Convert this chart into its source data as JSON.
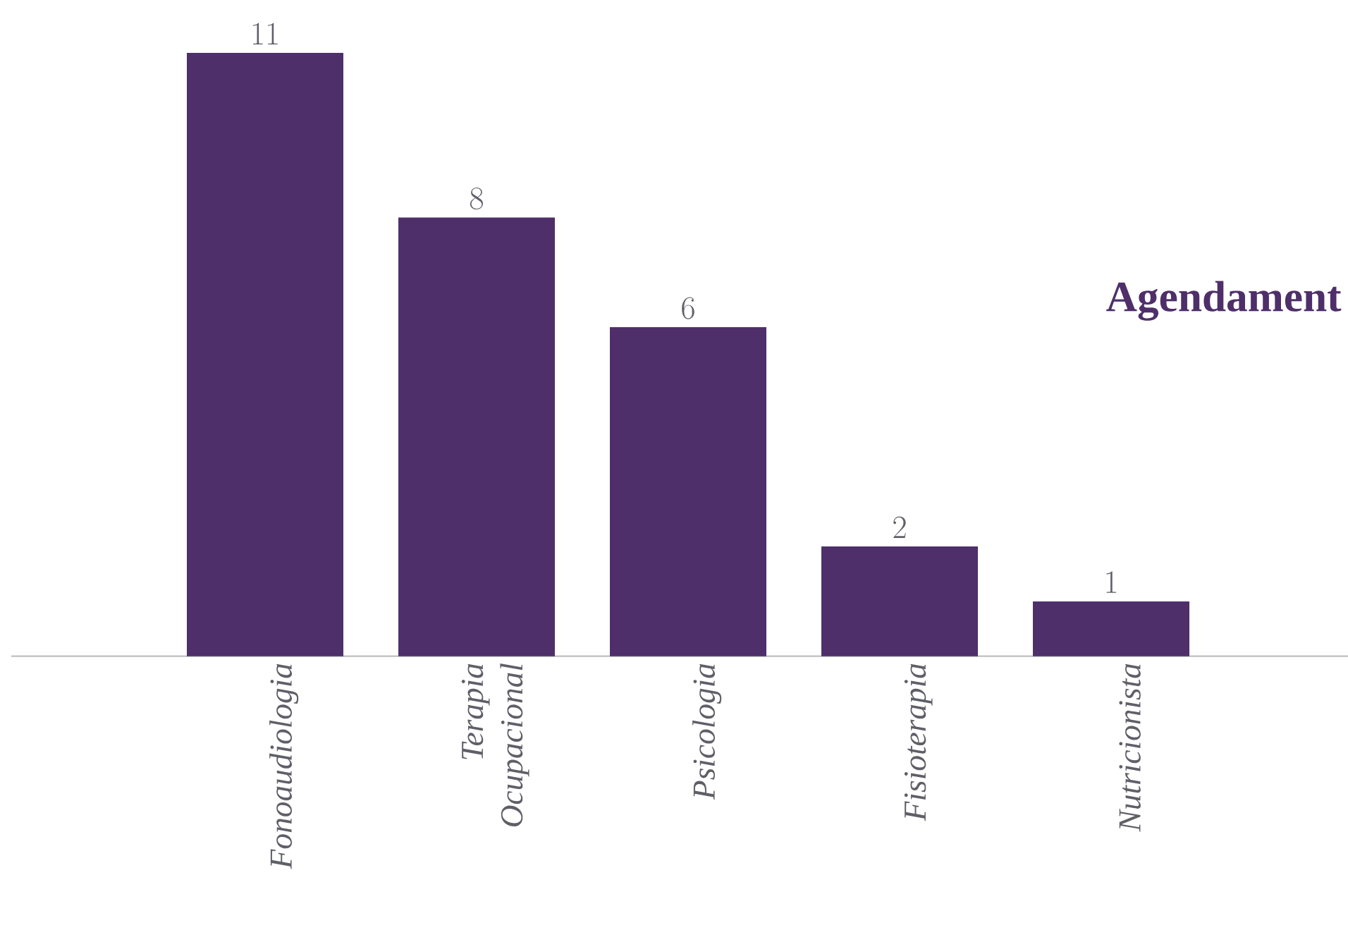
{
  "chart_data": {
    "type": "bar",
    "title": "Agendament",
    "categories": [
      "Fonoaudiologia",
      "Terapia Ocupacional",
      "Psicologia",
      "Fisioterapia",
      "Nutricionista"
    ],
    "values": [
      11,
      8,
      6,
      2,
      1
    ],
    "color": "#4e2f6a",
    "data_labels": true
  }
}
